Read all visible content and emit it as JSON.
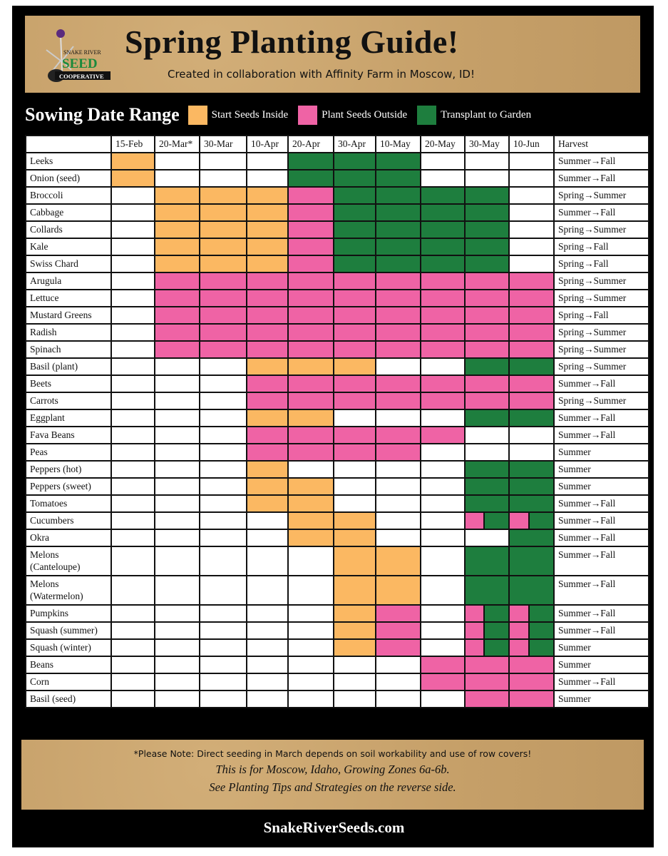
{
  "header": {
    "logo_text": [
      "SNAKE RIVER",
      "SEED",
      "COOPERATIVE"
    ],
    "title": "Spring Planting Guide!",
    "subtitle": "Created in collaboration with Affinity Farm in Moscow, ID!"
  },
  "legend": {
    "title": "Sowing Date Range",
    "items": [
      {
        "label": "Start Seeds Inside",
        "code": "O",
        "color": "#fbb862"
      },
      {
        "label": "Plant Seeds Outside",
        "code": "P",
        "color": "#ef63a5"
      },
      {
        "label": "Transplant to Garden",
        "code": "G",
        "color": "#1e7e3e"
      }
    ]
  },
  "table": {
    "columns": [
      "",
      "15-Feb",
      "20-Mar*",
      "30-Mar",
      "10-Apr",
      "20-Apr",
      "30-Apr",
      "10-May",
      "20-May",
      "30-May",
      "10-Jun",
      "Harvest"
    ],
    "rows": [
      {
        "name": "Leeks",
        "cells": [
          "O",
          "",
          "",
          "",
          "G",
          "G",
          "G",
          "",
          "",
          ""
        ],
        "harvest": "Summer→Fall"
      },
      {
        "name": "Onion (seed)",
        "cells": [
          "O",
          "",
          "",
          "",
          "G",
          "G",
          "G",
          "",
          "",
          ""
        ],
        "harvest": "Summer→Fall"
      },
      {
        "name": "Broccoli",
        "cells": [
          "",
          "O",
          "O",
          "O",
          "P",
          "G",
          "G",
          "G",
          "G",
          ""
        ],
        "harvest": "Spring→Summer"
      },
      {
        "name": "Cabbage",
        "cells": [
          "",
          "O",
          "O",
          "O",
          "P",
          "G",
          "G",
          "G",
          "G",
          ""
        ],
        "harvest": "Summer→Fall"
      },
      {
        "name": "Collards",
        "cells": [
          "",
          "O",
          "O",
          "O",
          "P",
          "G",
          "G",
          "G",
          "G",
          ""
        ],
        "harvest": "Spring→Summer"
      },
      {
        "name": "Kale",
        "cells": [
          "",
          "O",
          "O",
          "O",
          "P",
          "G",
          "G",
          "G",
          "G",
          ""
        ],
        "harvest": "Spring→Fall"
      },
      {
        "name": "Swiss Chard",
        "cells": [
          "",
          "O",
          "O",
          "O",
          "P",
          "G",
          "G",
          "G",
          "G",
          ""
        ],
        "harvest": "Spring→Fall"
      },
      {
        "name": "Arugula",
        "cells": [
          "",
          "P",
          "P",
          "P",
          "P",
          "P",
          "P",
          "P",
          "P",
          "P"
        ],
        "harvest": "Spring→Summer"
      },
      {
        "name": "Lettuce",
        "cells": [
          "",
          "P",
          "P",
          "P",
          "P",
          "P",
          "P",
          "P",
          "P",
          "P"
        ],
        "harvest": "Spring→Summer"
      },
      {
        "name": "Mustard Greens",
        "cells": [
          "",
          "P",
          "P",
          "P",
          "P",
          "P",
          "P",
          "P",
          "P",
          "P"
        ],
        "harvest": "Spring→Fall"
      },
      {
        "name": "Radish",
        "cells": [
          "",
          "P",
          "P",
          "P",
          "P",
          "P",
          "P",
          "P",
          "P",
          "P"
        ],
        "harvest": "Spring→Summer"
      },
      {
        "name": "Spinach",
        "cells": [
          "",
          "P",
          "P",
          "P",
          "P",
          "P",
          "P",
          "P",
          "P",
          "P"
        ],
        "harvest": "Spring→Summer"
      },
      {
        "name": "Basil (plant)",
        "cells": [
          "",
          "",
          "",
          "O",
          "O",
          "O",
          "",
          "",
          "G",
          "G"
        ],
        "harvest": "Spring→Summer"
      },
      {
        "name": "Beets",
        "cells": [
          "",
          "",
          "",
          "P",
          "P",
          "P",
          "P",
          "P",
          "P",
          "P"
        ],
        "harvest": "Summer→Fall"
      },
      {
        "name": "Carrots",
        "cells": [
          "",
          "",
          "",
          "P",
          "P",
          "P",
          "P",
          "P",
          "P",
          "P"
        ],
        "harvest": "Spring→Summer"
      },
      {
        "name": "Eggplant",
        "cells": [
          "",
          "",
          "",
          "O",
          "O",
          "",
          "",
          "",
          "G",
          "G"
        ],
        "harvest": "Summer→Fall"
      },
      {
        "name": "Fava Beans",
        "cells": [
          "",
          "",
          "",
          "P",
          "P",
          "P",
          "P",
          "P",
          "",
          ""
        ],
        "harvest": "Summer→Fall"
      },
      {
        "name": "Peas",
        "cells": [
          "",
          "",
          "",
          "P",
          "P",
          "P",
          "P",
          "",
          "",
          ""
        ],
        "harvest": "Summer"
      },
      {
        "name": "Peppers (hot)",
        "cells": [
          "",
          "",
          "",
          "O",
          "",
          "",
          "",
          "",
          "G",
          "G"
        ],
        "harvest": "Summer"
      },
      {
        "name": "Peppers (sweet)",
        "cells": [
          "",
          "",
          "",
          "O",
          "O",
          "",
          "",
          "",
          "G",
          "G"
        ],
        "harvest": "Summer"
      },
      {
        "name": "Tomatoes",
        "cells": [
          "",
          "",
          "",
          "O",
          "O",
          "",
          "",
          "",
          "G",
          "G"
        ],
        "harvest": "Summer→Fall"
      },
      {
        "name": "Cucumbers",
        "cells": [
          "",
          "",
          "",
          "",
          "O",
          "O",
          "",
          "",
          "PG",
          "PG"
        ],
        "harvest": "Summer→Fall"
      },
      {
        "name": "Okra",
        "cells": [
          "",
          "",
          "",
          "",
          "O",
          "O",
          "",
          "",
          "",
          "G"
        ],
        "harvest": "Summer→Fall"
      },
      {
        "name": "Melons (Canteloupe)",
        "cells": [
          "",
          "",
          "",
          "",
          "",
          "O",
          "O",
          "",
          "G",
          "G"
        ],
        "harvest": "Summer→Fall"
      },
      {
        "name": "Melons (Watermelon)",
        "cells": [
          "",
          "",
          "",
          "",
          "",
          "O",
          "O",
          "",
          "G",
          "G"
        ],
        "harvest": "Summer→Fall"
      },
      {
        "name": "Pumpkins",
        "cells": [
          "",
          "",
          "",
          "",
          "",
          "O",
          "P",
          "",
          "PG",
          "PG"
        ],
        "harvest": "Summer→Fall"
      },
      {
        "name": "Squash (summer)",
        "cells": [
          "",
          "",
          "",
          "",
          "",
          "O",
          "P",
          "",
          "PG",
          "PG"
        ],
        "harvest": "Summer→Fall"
      },
      {
        "name": "Squash (winter)",
        "cells": [
          "",
          "",
          "",
          "",
          "",
          "O",
          "P",
          "",
          "PG",
          "PG"
        ],
        "harvest": "Summer"
      },
      {
        "name": "Beans",
        "cells": [
          "",
          "",
          "",
          "",
          "",
          "",
          "",
          "P",
          "P",
          "P"
        ],
        "harvest": "Summer"
      },
      {
        "name": "Corn",
        "cells": [
          "",
          "",
          "",
          "",
          "",
          "",
          "",
          "P",
          "P",
          "P"
        ],
        "harvest": "Summer→Fall"
      },
      {
        "name": "Basil (seed)",
        "cells": [
          "",
          "",
          "",
          "",
          "",
          "",
          "",
          "",
          "P",
          "P"
        ],
        "harvest": "Summer"
      }
    ]
  },
  "footer": {
    "note": "*Please Note: Direct seeding in March depends on soil workability and use of row covers!",
    "line1": "This is for Moscow, Idaho, Growing Zones 6a-6b.",
    "line2": "See Planting Tips and Strategies on the reverse side.",
    "website": "SnakeRiverSeeds.com"
  },
  "colors": {
    "O": "#fbb862",
    "P": "#ef63a5",
    "G": "#1e7e3e",
    "background_tan": "#c9a46e",
    "frame": "#000000"
  }
}
